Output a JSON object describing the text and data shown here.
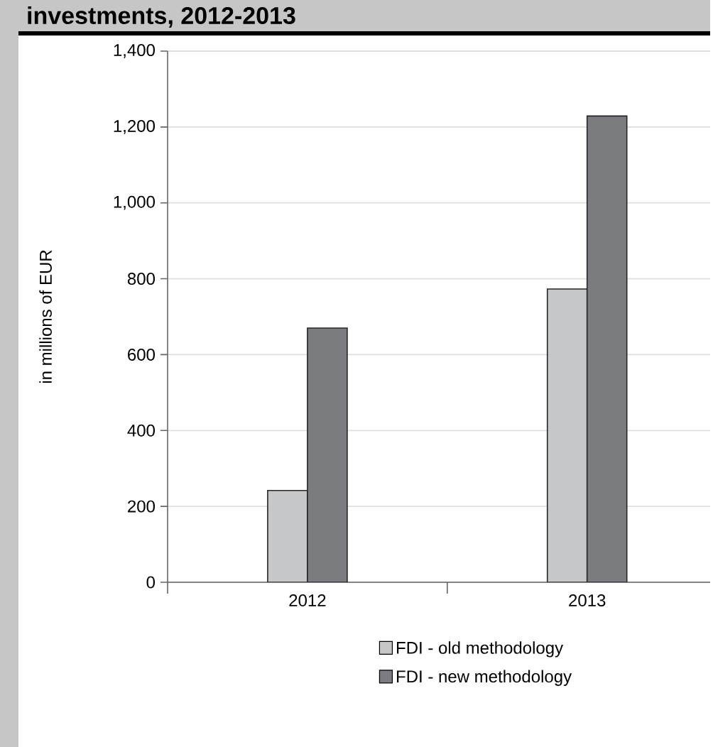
{
  "chart_data": {
    "type": "bar",
    "title": "investments, 2012-2013",
    "ylabel": "in millions of EUR",
    "categories": [
      "2012",
      "2013"
    ],
    "series": [
      {
        "name": "FDI - old methodology",
        "color": "#c6c7c9",
        "values": [
          242,
          773
        ]
      },
      {
        "name": "FDI - new methodology",
        "color": "#7b7c80",
        "values": [
          670,
          1229
        ]
      }
    ],
    "ylim": [
      0,
      1400
    ],
    "yticks": [
      0,
      200,
      400,
      600,
      800,
      {
        "value": 1000,
        "label": "1,000"
      },
      {
        "value": 1200,
        "label": "1,200"
      },
      {
        "value": 1400,
        "label": "1,400"
      }
    ],
    "grid": "y",
    "legend": "bottom"
  }
}
